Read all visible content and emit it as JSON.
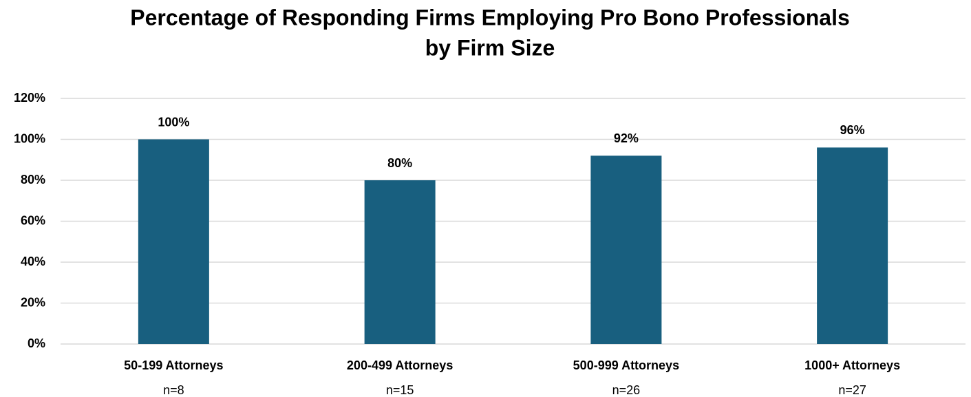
{
  "chart_data": {
    "type": "bar",
    "title": [
      "Percentage of Responding Firms Employing Pro Bono Professionals",
      "by Firm Size"
    ],
    "categories": [
      "50-199 Attorneys",
      "200-499 Attorneys",
      "500-999 Attorneys",
      "1000+ Attorneys"
    ],
    "category_notes": [
      "n=8",
      "n=15",
      "n=26",
      "n=27"
    ],
    "values": [
      100,
      80,
      92,
      96
    ],
    "value_labels": [
      "100%",
      "80%",
      "92%",
      "96%"
    ],
    "color": "#185f7f",
    "ylim": [
      0,
      120
    ],
    "yticks": [
      {
        "value": 0,
        "label": "0%"
      },
      {
        "value": 20,
        "label": "20%"
      },
      {
        "value": 40,
        "label": "40%"
      },
      {
        "value": 60,
        "label": "60%"
      },
      {
        "value": 80,
        "label": "80%"
      },
      {
        "value": 100,
        "label": "100%"
      },
      {
        "value": 120,
        "label": "120%"
      }
    ],
    "grid": true
  }
}
